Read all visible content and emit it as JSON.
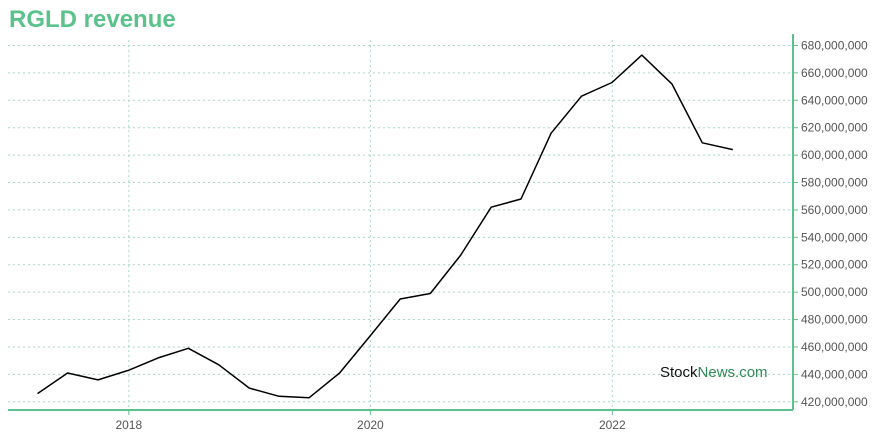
{
  "chart_data": {
    "type": "line",
    "title": "RGLD revenue",
    "xlabel": "",
    "ylabel": "",
    "x_ticks": [
      "2018",
      "2020",
      "2022"
    ],
    "y_ticks": [
      420000000,
      440000000,
      460000000,
      480000000,
      500000000,
      520000000,
      540000000,
      560000000,
      580000000,
      600000000,
      620000000,
      640000000,
      660000000,
      680000000
    ],
    "ylim": [
      414000000,
      684000000
    ],
    "xlim": [
      "2017-01-01",
      "2023-07-01"
    ],
    "grid": true,
    "series": [
      {
        "color": "#000000",
        "points": [
          {
            "x": "2017-03-31",
            "y": 426000000
          },
          {
            "x": "2017-06-30",
            "y": 441000000
          },
          {
            "x": "2017-09-30",
            "y": 436000000
          },
          {
            "x": "2017-12-31",
            "y": 443000000
          },
          {
            "x": "2018-03-31",
            "y": 452000000
          },
          {
            "x": "2018-06-30",
            "y": 459000000
          },
          {
            "x": "2018-09-30",
            "y": 447000000
          },
          {
            "x": "2018-12-31",
            "y": 430000000
          },
          {
            "x": "2019-03-31",
            "y": 424000000
          },
          {
            "x": "2019-06-30",
            "y": 423000000
          },
          {
            "x": "2019-09-30",
            "y": 441000000
          },
          {
            "x": "2019-12-31",
            "y": 468000000
          },
          {
            "x": "2020-03-31",
            "y": 495000000
          },
          {
            "x": "2020-06-30",
            "y": 499000000
          },
          {
            "x": "2020-09-30",
            "y": 527000000
          },
          {
            "x": "2020-12-31",
            "y": 562000000
          },
          {
            "x": "2021-03-31",
            "y": 568000000
          },
          {
            "x": "2021-06-30",
            "y": 616000000
          },
          {
            "x": "2021-09-30",
            "y": 643000000
          },
          {
            "x": "2021-12-31",
            "y": 653000000
          },
          {
            "x": "2022-03-31",
            "y": 673000000
          },
          {
            "x": "2022-06-30",
            "y": 652000000
          },
          {
            "x": "2022-09-30",
            "y": 609000000
          },
          {
            "x": "2022-12-31",
            "y": 604000000
          }
        ]
      }
    ]
  },
  "watermark": {
    "part1": "Stock",
    "part2": "News.com"
  },
  "colors": {
    "accent": "#5ac28a",
    "grid": "#a8d8c0",
    "line": "#000000"
  }
}
